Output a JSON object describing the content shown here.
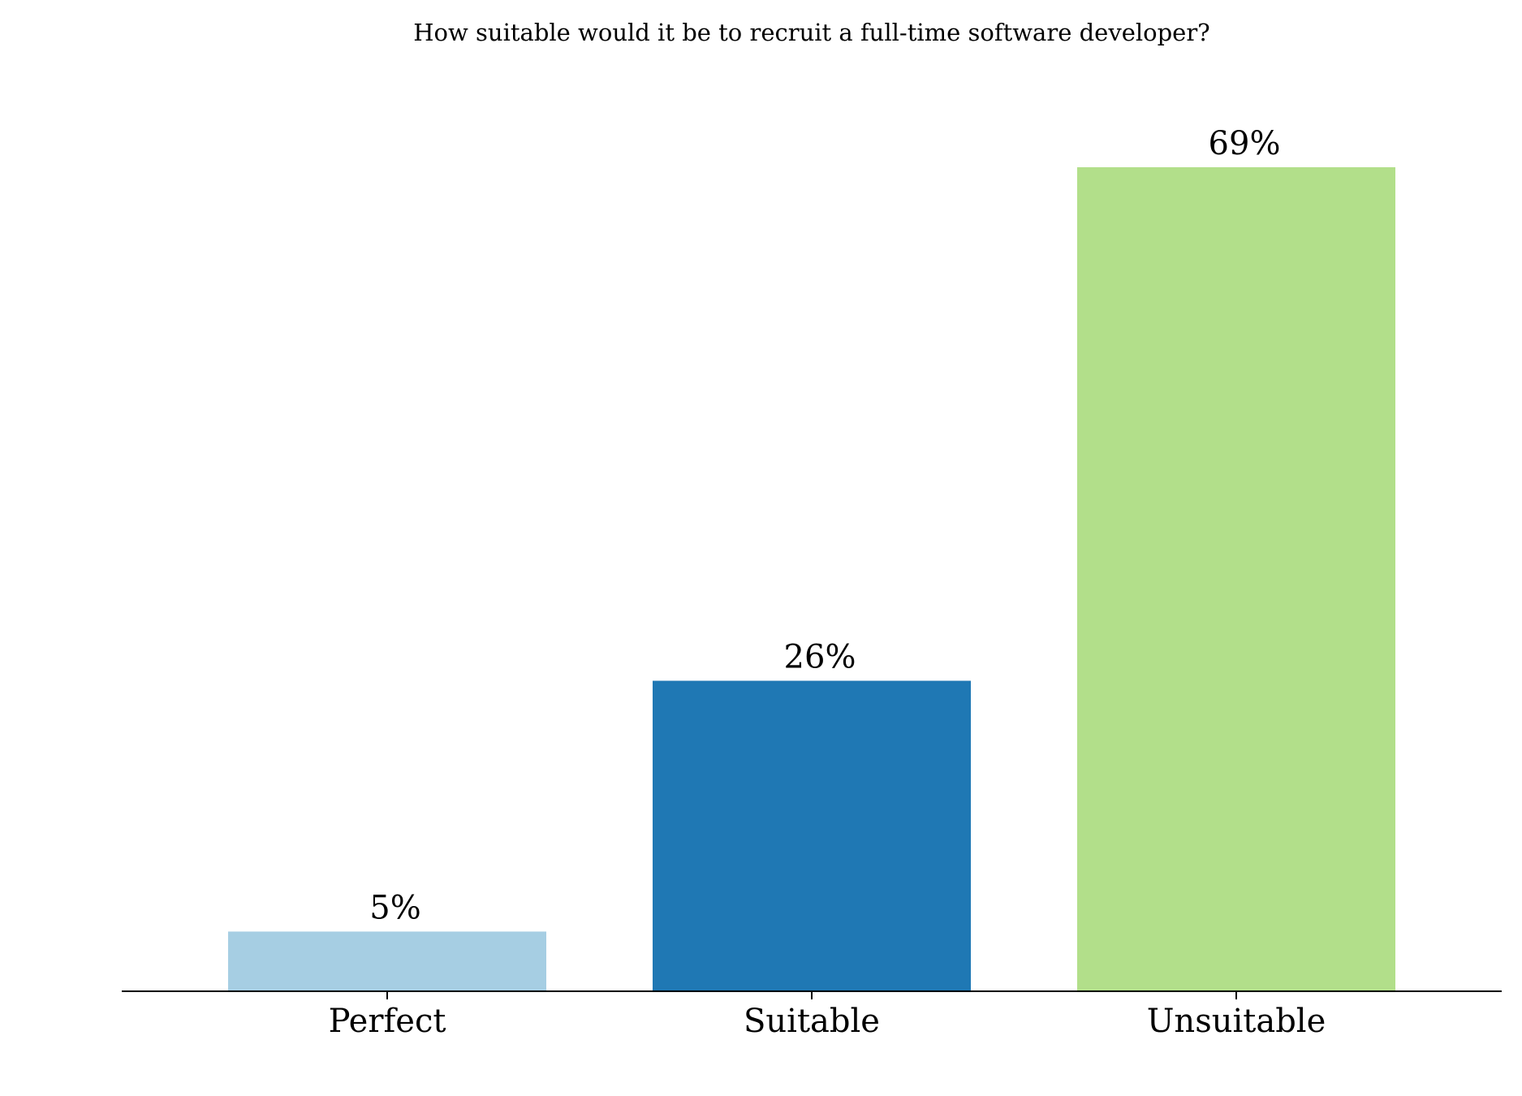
{
  "chart_data": {
    "type": "bar",
    "title": "How suitable would it be to recruit a full-time software developer?",
    "categories": [
      "Perfect",
      "Suitable",
      "Unsuitable"
    ],
    "values": [
      5,
      26,
      69
    ],
    "value_labels": [
      "5%",
      "26%",
      "69%"
    ],
    "colors": [
      "#a6cee3",
      "#1f78b4",
      "#b2df8a"
    ],
    "ylim": [
      0,
      75
    ],
    "grid": false,
    "y_axis_visible": false
  }
}
